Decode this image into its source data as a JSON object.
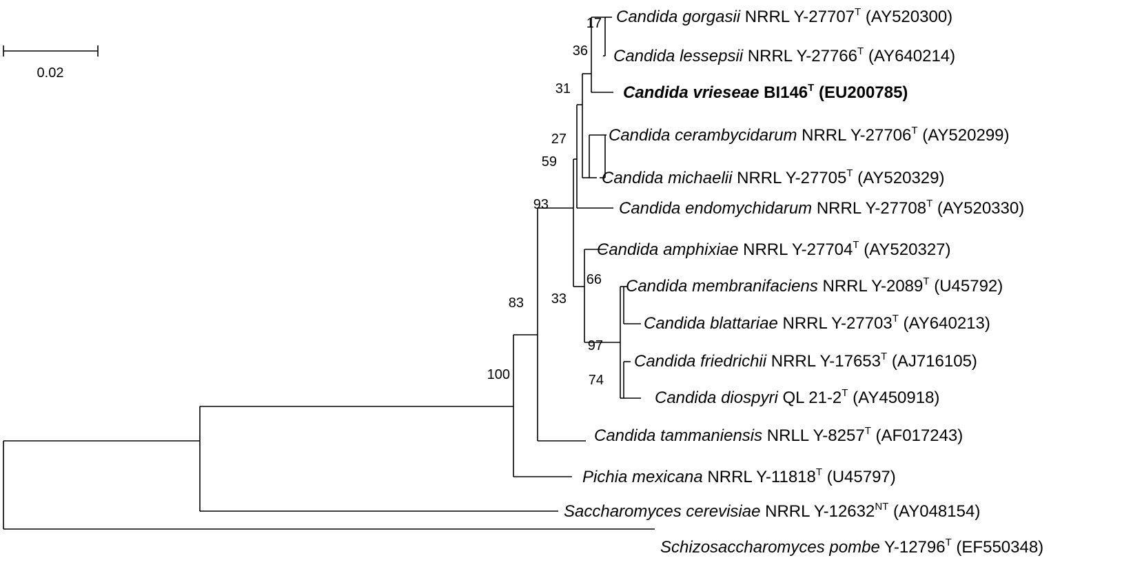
{
  "scale_bar": {
    "label": "0.02"
  },
  "taxa": [
    {
      "id": "gorgasii",
      "species": "Candida gorgasii",
      "strain": "NRRL Y-27707",
      "superscript": "T",
      "accession": "(AY520300)",
      "bold": false
    },
    {
      "id": "lessepsii",
      "species": "Candida lessepsii",
      "strain": "NRRL Y-27766",
      "superscript": "T",
      "accession": "(AY640214)",
      "bold": false
    },
    {
      "id": "vrieseae",
      "species": "Candida vrieseae",
      "strain": "BI146",
      "superscript": "T",
      "accession": "(EU200785)",
      "bold": true
    },
    {
      "id": "cerambycidarum",
      "species": "Candida cerambycidarum",
      "strain": "NRRL Y-27706",
      "superscript": "T",
      "accession": "(AY520299)",
      "bold": false
    },
    {
      "id": "michaelii",
      "species": "Candida michaelii",
      "strain": "NRRL Y-27705",
      "superscript": "T",
      "accession": "(AY520329)",
      "bold": false
    },
    {
      "id": "endomychidarum",
      "species": "Candida endomychidarum",
      "strain": "NRRL Y-27708",
      "superscript": "T",
      "accession": "(AY520330)",
      "bold": false
    },
    {
      "id": "amphixiae",
      "species": "Candida amphixiae",
      "strain": "NRRL Y-27704",
      "superscript": "T",
      "accession": "(AY520327)",
      "bold": false
    },
    {
      "id": "membranifaciens",
      "species": "Candida membranifaciens",
      "strain": "NRRL Y-2089",
      "superscript": "T",
      "accession": "(U45792)",
      "bold": false
    },
    {
      "id": "blattariae",
      "species": "Candida blattariae",
      "strain": "NRRL Y-27703",
      "superscript": "T",
      "accession": "(AY640213)",
      "bold": false
    },
    {
      "id": "friedrichii",
      "species": "Candida friedrichii",
      "strain": "NRRL Y-17653",
      "superscript": "T",
      "accession": "(AJ716105)",
      "bold": false
    },
    {
      "id": "diospyri",
      "species": "Candida diospyri",
      "strain": "QL 21-2",
      "superscript": "T",
      "accession": "(AY450918)",
      "bold": false
    },
    {
      "id": "tammaniensis",
      "species": "Candida tammaniensis",
      "strain": "NRLL Y-8257",
      "superscript": "T",
      "accession": "(AF017243)",
      "bold": false
    },
    {
      "id": "mexicana",
      "species": "Pichia mexicana",
      "strain": "NRRL Y-11818",
      "superscript": "T",
      "accession": "(U45797)",
      "bold": false
    },
    {
      "id": "cerevisiae",
      "species": "Saccharomyces cerevisiae",
      "strain": "NRRL Y-12632",
      "superscript": "NT",
      "accession": "(AY048154)",
      "bold": false
    },
    {
      "id": "pombe",
      "species": "Schizosaccharomyces pombe",
      "strain": "Y-12796",
      "superscript": "T",
      "accession": "(EF550348)",
      "bold": false
    }
  ],
  "bootstrap_values": [
    "17",
    "36",
    "31",
    "27",
    "59",
    "93",
    "66",
    "33",
    "97",
    "74",
    "83",
    "100"
  ]
}
